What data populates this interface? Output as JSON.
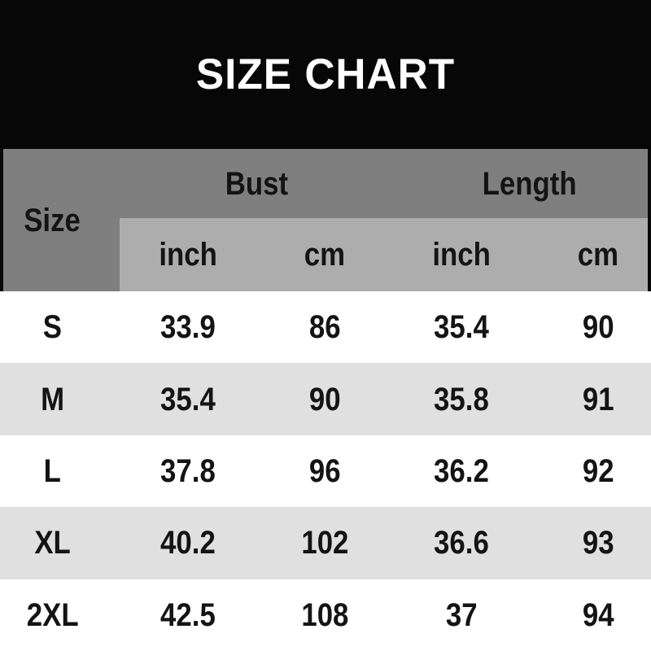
{
  "title": "SIZE CHART",
  "colors": {
    "banner_bg": "#070707",
    "title_text": "#ffffff",
    "header_dark_gray": "#7f7f7f",
    "header_light_gray": "#adadad",
    "row_alt_gray": "#e0e0e0",
    "row_base": "#ffffff",
    "table_text": "#141414"
  },
  "table": {
    "size_label": "Size",
    "groups": [
      {
        "label": "Bust"
      },
      {
        "label": "Length"
      }
    ],
    "subheaders": [
      "inch",
      "cm",
      "inch",
      "cm"
    ],
    "rows": [
      {
        "size": "S",
        "values": [
          "33.9",
          "86",
          "35.4",
          "90"
        ]
      },
      {
        "size": "M",
        "values": [
          "35.4",
          "90",
          "35.8",
          "91"
        ]
      },
      {
        "size": "L",
        "values": [
          "37.8",
          "96",
          "36.2",
          "92"
        ]
      },
      {
        "size": "XL",
        "values": [
          "40.2",
          "102",
          "36.6",
          "93"
        ]
      },
      {
        "size": "2XL",
        "values": [
          "42.5",
          "108",
          "37",
          "94"
        ]
      }
    ]
  }
}
